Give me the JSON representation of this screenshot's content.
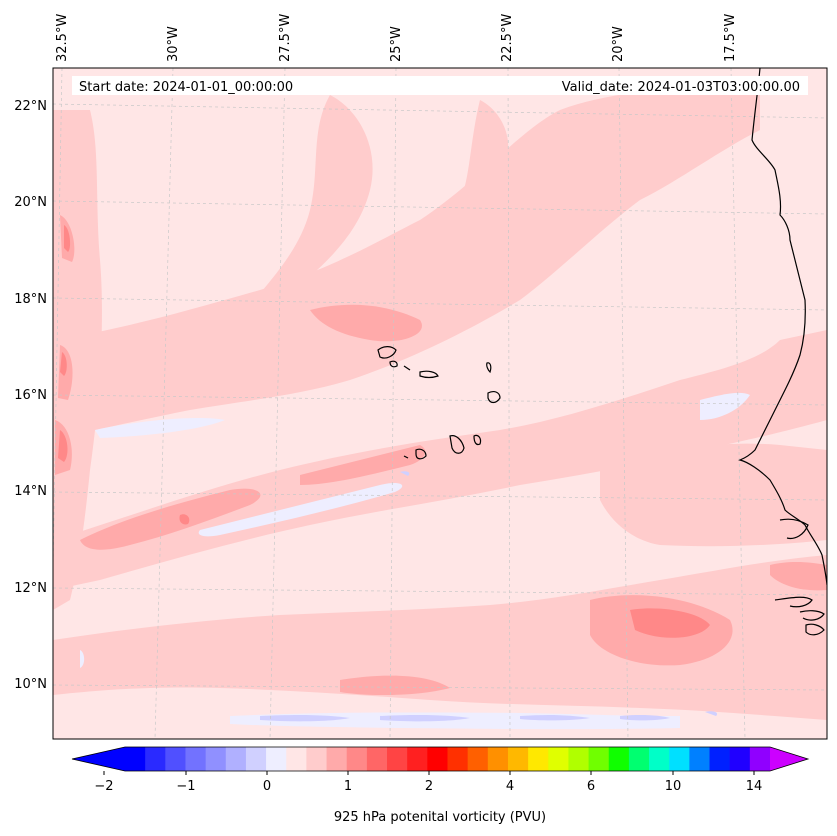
{
  "header": {
    "start_label": "Start date: 2024-01-01_00:00:00",
    "valid_label": "Valid_date: 2024-01-03T03:00:00.00"
  },
  "axes": {
    "lon_labels": [
      "32.5°W",
      "30°W",
      "27.5°W",
      "25°W",
      "22.5°W",
      "20°W",
      "17.5°W"
    ],
    "lat_labels": [
      "22°N",
      "20°N",
      "18°N",
      "16°N",
      "14°N",
      "12°N",
      "10°N"
    ]
  },
  "colorbar": {
    "label": "925 hPa potenital vorticity (PVU)",
    "tick_labels": [
      "−2",
      "−1",
      "0",
      "1",
      "2",
      "4",
      "6",
      "10",
      "14"
    ],
    "colors": [
      "#0000ff",
      "#2a2aff",
      "#5050ff",
      "#7272ff",
      "#9090ff",
      "#b0b0ff",
      "#d0d0ff",
      "#eeeeff",
      "#ffe6e6",
      "#ffcccc",
      "#ffaaaa",
      "#ff8888",
      "#ff6666",
      "#ff4444",
      "#ff2020",
      "#ff0000",
      "#ff3000",
      "#ff6000",
      "#ff9000",
      "#ffb800",
      "#ffe800",
      "#e0ff00",
      "#b0ff00",
      "#70ff00",
      "#10ff00",
      "#00ff70",
      "#00ffc8",
      "#00e0ff",
      "#0080ff",
      "#0020ff",
      "#2000ff",
      "#9000ff"
    ],
    "extend_low_color": "#0000ff",
    "extend_high_color": "#cc00ff"
  },
  "field_colors": {
    "background": "#ffe6e6",
    "light": "#ffcccc",
    "medium": "#ffaaaa",
    "strong": "#ff8888",
    "negative_light": "#eeeeff",
    "negative_medium": "#d0d0ff",
    "coast": "#000000"
  }
}
